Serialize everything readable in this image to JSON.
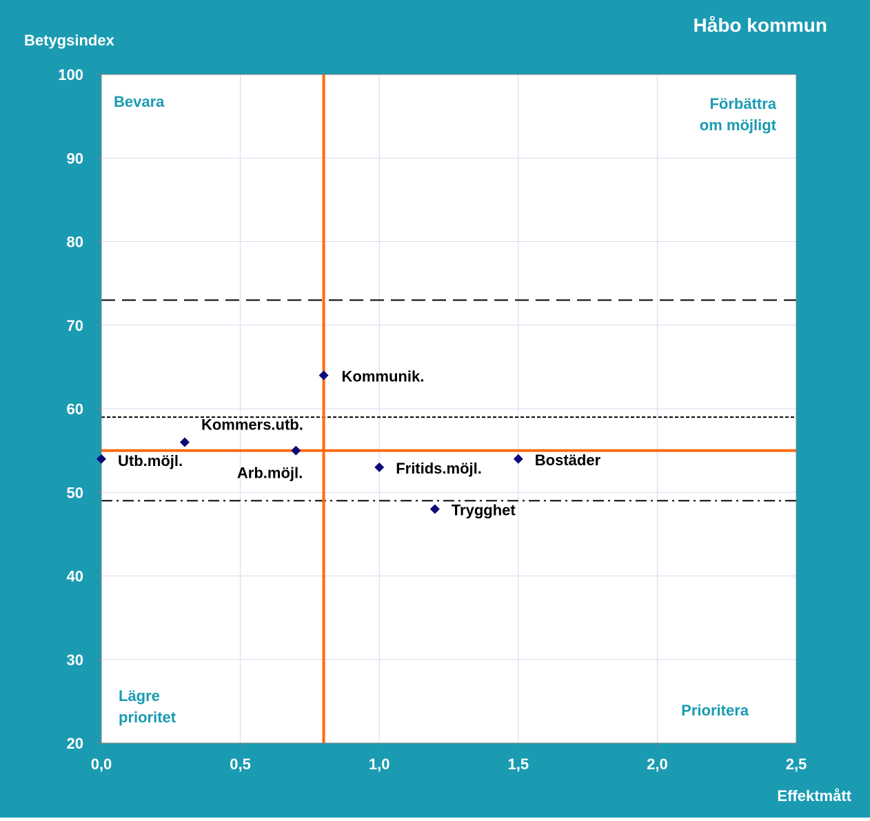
{
  "chart_data": {
    "type": "scatter",
    "title": "Håbo kommun",
    "xlabel": "Effektmått",
    "ylabel": "Betygsindex",
    "xlim": [
      0,
      2.5
    ],
    "ylim": [
      20,
      100
    ],
    "x_ticks": [
      "0,0",
      "0,5",
      "1,0",
      "1,5",
      "2,0",
      "2,5"
    ],
    "y_ticks": [
      "20",
      "30",
      "40",
      "50",
      "60",
      "70",
      "80",
      "90",
      "100"
    ],
    "grid": true,
    "points": [
      {
        "label": "Utb.möjl.",
        "x": 0.0,
        "y": 54
      },
      {
        "label": "Kommers.utb.",
        "x": 0.3,
        "y": 56
      },
      {
        "label": "Arb.möjl.",
        "x": 0.7,
        "y": 55
      },
      {
        "label": "Kommunik.",
        "x": 0.8,
        "y": 64
      },
      {
        "label": "Fritids.möjl.",
        "x": 1.0,
        "y": 53
      },
      {
        "label": "Trygghet",
        "x": 1.2,
        "y": 48
      },
      {
        "label": "Bostäder",
        "x": 1.5,
        "y": 54
      }
    ],
    "reference_lines": {
      "mean_x": 0.8,
      "mean_y": 55,
      "dashed_y": 73,
      "dotted_y": 59,
      "dashdot_y": 49
    },
    "quadrants": {
      "top_left": "Bevara",
      "top_right_line1": "Förbättra",
      "top_right_line2": "om möjligt",
      "bottom_left_line1": "Lägre",
      "bottom_left_line2": "prioritet",
      "bottom_right": "Prioritera"
    },
    "colors": {
      "background": "#1a9bb2",
      "plot": "#ffffff",
      "grid": "#d9d9ef",
      "mean_lines": "#ff6a10",
      "marker": "#0b0b7a",
      "quadrant_text": "#1a9bb2"
    }
  }
}
